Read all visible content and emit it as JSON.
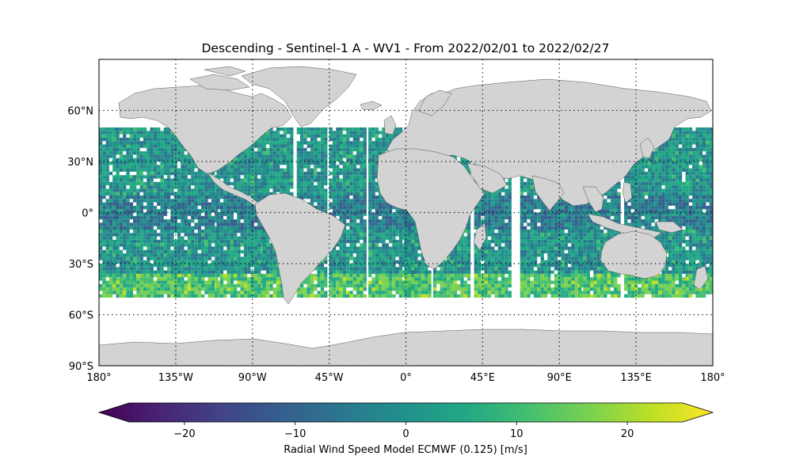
{
  "title": "Descending - Sentinel-1 A - WV1 - From 2022/02/01 to 2022/02/27",
  "map": {
    "projection": "PlateCarree",
    "lon_range": [
      -180,
      180
    ],
    "lat_range": [
      -90,
      90
    ],
    "land_color": "#d3d3d3",
    "ocean_color": "#ffffff",
    "grid_style": "dotted",
    "lon_ticks": [
      {
        "value": -180,
        "label": "180°"
      },
      {
        "value": -135,
        "label": "135°W"
      },
      {
        "value": -90,
        "label": "90°W"
      },
      {
        "value": -45,
        "label": "45°W"
      },
      {
        "value": 0,
        "label": "0°"
      },
      {
        "value": 45,
        "label": "45°E"
      },
      {
        "value": 90,
        "label": "90°E"
      },
      {
        "value": 135,
        "label": "135°E"
      },
      {
        "value": 180,
        "label": "180°"
      }
    ],
    "lat_ticks": [
      {
        "value": 60,
        "label": "60°N"
      },
      {
        "value": 30,
        "label": "30°N"
      },
      {
        "value": 0,
        "label": "0°"
      },
      {
        "value": -30,
        "label": "30°S"
      },
      {
        "value": -60,
        "label": "60°S"
      },
      {
        "value": -90,
        "label": "90°S"
      }
    ],
    "data_lat_band": [
      -50,
      50
    ]
  },
  "colorbar": {
    "label": "Radial Wind Speed Model ECMWF (0.125) [m/s]",
    "colormap": "viridis",
    "vmin": -25,
    "vmax": 25,
    "extend": "both",
    "ticks": [
      {
        "value": -20,
        "label": "−20"
      },
      {
        "value": -10,
        "label": "−10"
      },
      {
        "value": 0,
        "label": "0"
      },
      {
        "value": 10,
        "label": "10"
      },
      {
        "value": 20,
        "label": "20"
      }
    ]
  }
}
